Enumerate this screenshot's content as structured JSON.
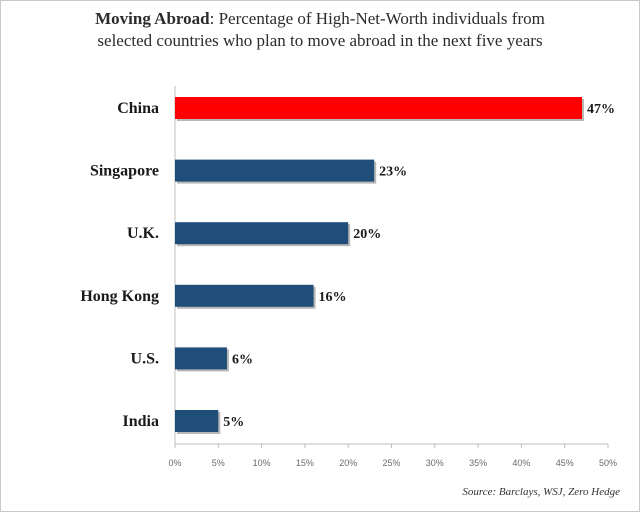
{
  "title": {
    "bold": "Moving Abroad",
    "rest_line1": ": Percentage of High-Net-Worth individuals from",
    "line2": "selected countries who plan to move abroad in the next five years"
  },
  "chart_data": {
    "type": "bar",
    "orientation": "horizontal",
    "categories": [
      "China",
      "Singapore",
      "U.K.",
      "Hong Kong",
      "U.S.",
      "India"
    ],
    "values": [
      47,
      23,
      20,
      16,
      6,
      5
    ],
    "value_labels": [
      "47%",
      "23%",
      "20%",
      "16%",
      "6%",
      "5%"
    ],
    "highlight_index": 0,
    "xlim": [
      0,
      50
    ],
    "x_ticks": [
      0,
      5,
      10,
      15,
      20,
      25,
      30,
      35,
      40,
      45,
      50
    ],
    "x_tick_labels": [
      "0%",
      "5%",
      "10%",
      "15%",
      "20%",
      "25%",
      "30%",
      "35%",
      "40%",
      "45%",
      "50%"
    ],
    "grid": false,
    "colors": {
      "highlight": "#ff0000",
      "default": "#1f4e79",
      "shadow": "#b8b8b8",
      "axis": "#bfbfbf"
    }
  },
  "source": "Source: Barclays, WSJ, Zero Hedge"
}
